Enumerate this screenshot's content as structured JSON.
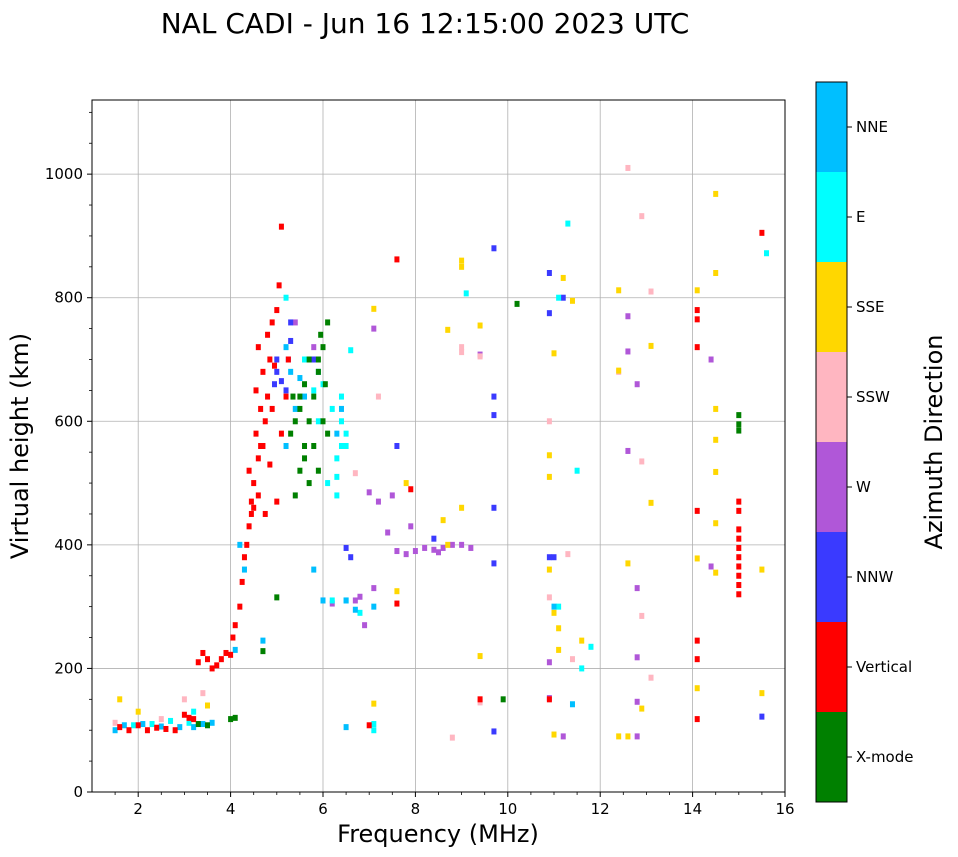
{
  "chart_data": {
    "type": "scatter",
    "title": "NAL CADI - Jun 16 12:15:00 2023 UTC",
    "xlabel": "Frequency (MHz)",
    "ylabel": "Virtual height (km)",
    "xlim": [
      1,
      16
    ],
    "ylim": [
      0,
      1120
    ],
    "xticks": [
      2,
      4,
      6,
      8,
      10,
      12,
      14,
      16
    ],
    "xtick_labels": [
      "2",
      "4",
      "6",
      "8",
      "10",
      "12",
      "14",
      "16"
    ],
    "yticks": [
      0,
      200,
      400,
      600,
      800,
      1000
    ],
    "ytick_labels": [
      "0",
      "200",
      "400",
      "600",
      "800",
      "1000"
    ],
    "grid": true,
    "colorbar": {
      "label": "Azimuth Direction",
      "categories": [
        "X-mode",
        "Vertical",
        "NNW",
        "W",
        "SSW",
        "SSE",
        "E",
        "NNE"
      ],
      "colors": {
        "X-mode": "#008000",
        "Vertical": "#ff0000",
        "NNW": "#3a3aff",
        "W": "#b057d8",
        "SSW": "#ffb6c1",
        "SSE": "#ffd700",
        "E": "#00ffff",
        "NNE": "#00bfff"
      }
    },
    "series": [
      {
        "name": "Vertical",
        "points": [
          [
            1.6,
            105
          ],
          [
            1.8,
            100
          ],
          [
            2.0,
            108
          ],
          [
            2.2,
            100
          ],
          [
            2.4,
            104
          ],
          [
            2.6,
            102
          ],
          [
            2.8,
            100
          ],
          [
            3.0,
            125
          ],
          [
            3.1,
            120
          ],
          [
            3.2,
            118
          ],
          [
            3.3,
            210
          ],
          [
            3.4,
            225
          ],
          [
            3.5,
            215
          ],
          [
            3.6,
            200
          ],
          [
            3.7,
            205
          ],
          [
            3.8,
            215
          ],
          [
            3.9,
            225
          ],
          [
            4.0,
            222
          ],
          [
            4.05,
            250
          ],
          [
            4.1,
            270
          ],
          [
            4.2,
            300
          ],
          [
            4.25,
            340
          ],
          [
            4.3,
            380
          ],
          [
            4.35,
            400
          ],
          [
            4.45,
            450
          ],
          [
            4.5,
            500
          ],
          [
            4.6,
            540
          ],
          [
            4.7,
            560
          ],
          [
            4.75,
            600
          ],
          [
            4.8,
            640
          ],
          [
            4.85,
            700
          ],
          [
            4.9,
            760
          ],
          [
            5.0,
            780
          ],
          [
            5.05,
            820
          ],
          [
            4.4,
            520
          ],
          [
            4.55,
            580
          ],
          [
            4.65,
            620
          ],
          [
            4.7,
            680
          ],
          [
            4.8,
            740
          ],
          [
            4.95,
            690
          ],
          [
            4.5,
            460
          ],
          [
            4.6,
            480
          ],
          [
            4.75,
            450
          ],
          [
            4.85,
            530
          ],
          [
            5.0,
            470
          ],
          [
            5.1,
            580
          ],
          [
            5.2,
            640
          ],
          [
            5.25,
            700
          ],
          [
            4.4,
            430
          ],
          [
            4.55,
            650
          ],
          [
            4.6,
            720
          ],
          [
            4.45,
            470
          ],
          [
            4.65,
            560
          ],
          [
            4.9,
            620
          ],
          [
            7.6,
            305
          ],
          [
            7.9,
            490
          ],
          [
            10.9,
            150
          ],
          [
            9.4,
            150
          ],
          [
            14.1,
            720
          ],
          [
            14.1,
            780
          ],
          [
            14.1,
            765
          ],
          [
            14.1,
            455
          ],
          [
            14.1,
            245
          ],
          [
            14.1,
            215
          ],
          [
            14.1,
            118
          ],
          [
            15.5,
            905
          ],
          [
            15.0,
            470
          ],
          [
            15.0,
            455
          ],
          [
            15.0,
            425
          ],
          [
            15.0,
            410
          ],
          [
            15.0,
            395
          ],
          [
            15.0,
            380
          ],
          [
            15.0,
            365
          ],
          [
            15.0,
            350
          ],
          [
            15.0,
            335
          ],
          [
            15.0,
            320
          ],
          [
            5.1,
            915
          ],
          [
            7.6,
            862
          ],
          [
            7.0,
            108
          ]
        ]
      },
      {
        "name": "X-mode",
        "points": [
          [
            3.3,
            110
          ],
          [
            3.5,
            108
          ],
          [
            4.0,
            118
          ],
          [
            4.1,
            120
          ],
          [
            5.0,
            315
          ],
          [
            4.7,
            228
          ],
          [
            5.4,
            480
          ],
          [
            5.5,
            520
          ],
          [
            5.6,
            560
          ],
          [
            5.7,
            600
          ],
          [
            5.8,
            640
          ],
          [
            5.9,
            680
          ],
          [
            6.0,
            720
          ],
          [
            6.1,
            760
          ],
          [
            5.5,
            620
          ],
          [
            5.6,
            660
          ],
          [
            5.7,
            700
          ],
          [
            5.8,
            560
          ],
          [
            5.9,
            520
          ],
          [
            5.3,
            580
          ],
          [
            5.4,
            600
          ],
          [
            5.5,
            640
          ],
          [
            5.6,
            540
          ],
          [
            5.7,
            500
          ],
          [
            6.0,
            600
          ],
          [
            6.1,
            580
          ],
          [
            5.9,
            700
          ],
          [
            5.95,
            740
          ],
          [
            6.05,
            660
          ],
          [
            5.35,
            640
          ],
          [
            15.0,
            610
          ],
          [
            15.0,
            595
          ],
          [
            15.0,
            585
          ],
          [
            10.2,
            790
          ],
          [
            9.9,
            150
          ]
        ]
      },
      {
        "name": "NNW",
        "points": [
          [
            5.0,
            680
          ],
          [
            5.1,
            665
          ],
          [
            5.2,
            650
          ],
          [
            5.25,
            700
          ],
          [
            4.95,
            660
          ],
          [
            5.3,
            760
          ],
          [
            5.8,
            700
          ],
          [
            6.5,
            395
          ],
          [
            6.6,
            380
          ],
          [
            7.6,
            560
          ],
          [
            8.4,
            410
          ],
          [
            10.9,
            840
          ],
          [
            11.0,
            380
          ],
          [
            10.9,
            775
          ],
          [
            9.7,
            880
          ],
          [
            9.7,
            640
          ],
          [
            9.7,
            610
          ],
          [
            9.7,
            460
          ],
          [
            9.7,
            370
          ],
          [
            9.7,
            98
          ],
          [
            10.9,
            380
          ],
          [
            11.2,
            800
          ],
          [
            15.5,
            122
          ],
          [
            5.3,
            730
          ],
          [
            5.0,
            700
          ]
        ]
      },
      {
        "name": "W",
        "points": [
          [
            6.8,
            316
          ],
          [
            6.7,
            310
          ],
          [
            7.1,
            330
          ],
          [
            7.4,
            420
          ],
          [
            7.6,
            390
          ],
          [
            7.8,
            385
          ],
          [
            8.0,
            390
          ],
          [
            8.2,
            395
          ],
          [
            8.4,
            392
          ],
          [
            8.6,
            395
          ],
          [
            8.8,
            400
          ],
          [
            9.0,
            400
          ],
          [
            9.2,
            395
          ],
          [
            8.5,
            388
          ],
          [
            7.9,
            430
          ],
          [
            7.5,
            480
          ],
          [
            7.2,
            470
          ],
          [
            5.4,
            760
          ],
          [
            5.8,
            720
          ],
          [
            6.0,
            310
          ],
          [
            6.2,
            305
          ],
          [
            9.4,
            708
          ],
          [
            12.6,
            770
          ],
          [
            12.6,
            713
          ],
          [
            12.6,
            552
          ],
          [
            12.8,
            660
          ],
          [
            12.8,
            330
          ],
          [
            12.8,
            218
          ],
          [
            12.8,
            146
          ],
          [
            12.8,
            90
          ],
          [
            14.4,
            700
          ],
          [
            14.4,
            365
          ],
          [
            10.9,
            152
          ],
          [
            11.2,
            90
          ],
          [
            10.9,
            210
          ],
          [
            7.0,
            485
          ],
          [
            7.1,
            750
          ],
          [
            6.9,
            270
          ]
        ]
      },
      {
        "name": "SSW",
        "points": [
          [
            1.5,
            112
          ],
          [
            2.5,
            118
          ],
          [
            3.0,
            150
          ],
          [
            3.4,
            160
          ],
          [
            8.8,
            88
          ],
          [
            9.0,
            712
          ],
          [
            9.0,
            720
          ],
          [
            10.9,
            315
          ],
          [
            11.3,
            385
          ],
          [
            11.4,
            215
          ],
          [
            12.6,
            1010
          ],
          [
            12.9,
            932
          ],
          [
            13.1,
            810
          ],
          [
            12.9,
            535
          ],
          [
            12.9,
            285
          ],
          [
            13.1,
            185
          ],
          [
            12.4,
            680
          ],
          [
            9.4,
            705
          ],
          [
            6.7,
            516
          ],
          [
            7.2,
            640
          ],
          [
            10.9,
            600
          ],
          [
            9.4,
            145
          ]
        ]
      },
      {
        "name": "SSE",
        "points": [
          [
            1.6,
            150
          ],
          [
            2.0,
            130
          ],
          [
            3.5,
            140
          ],
          [
            8.6,
            440
          ],
          [
            8.7,
            748
          ],
          [
            9.0,
            860
          ],
          [
            9.0,
            850
          ],
          [
            9.0,
            460
          ],
          [
            9.4,
            755
          ],
          [
            9.4,
            220
          ],
          [
            8.7,
            400
          ],
          [
            10.9,
            545
          ],
          [
            10.9,
            510
          ],
          [
            11.0,
            710
          ],
          [
            10.9,
            360
          ],
          [
            11.0,
            290
          ],
          [
            11.1,
            265
          ],
          [
            11.2,
            832
          ],
          [
            11.4,
            795
          ],
          [
            11.1,
            230
          ],
          [
            12.4,
            812
          ],
          [
            12.4,
            682
          ],
          [
            12.6,
            370
          ],
          [
            12.9,
            135
          ],
          [
            13.1,
            722
          ],
          [
            13.1,
            468
          ],
          [
            12.4,
            90
          ],
          [
            12.6,
            90
          ],
          [
            14.5,
            968
          ],
          [
            14.5,
            840
          ],
          [
            14.1,
            812
          ],
          [
            14.5,
            620
          ],
          [
            14.5,
            570
          ],
          [
            14.5,
            518
          ],
          [
            14.5,
            435
          ],
          [
            14.5,
            355
          ],
          [
            14.1,
            378
          ],
          [
            14.1,
            168
          ],
          [
            15.5,
            360
          ],
          [
            15.5,
            160
          ],
          [
            7.1,
            782
          ],
          [
            7.6,
            325
          ],
          [
            7.1,
            143
          ],
          [
            11.0,
            93
          ],
          [
            11.6,
            245
          ],
          [
            7.8,
            500
          ]
        ]
      },
      {
        "name": "E",
        "points": [
          [
            1.9,
            108
          ],
          [
            2.3,
            110
          ],
          [
            2.7,
            115
          ],
          [
            3.1,
            112
          ],
          [
            3.2,
            130
          ],
          [
            6.4,
            600
          ],
          [
            6.5,
            580
          ],
          [
            6.4,
            560
          ],
          [
            6.3,
            540
          ],
          [
            6.5,
            560
          ],
          [
            6.3,
            510
          ],
          [
            6.4,
            640
          ],
          [
            6.2,
            620
          ],
          [
            6.1,
            500
          ],
          [
            6.3,
            480
          ],
          [
            5.8,
            650
          ],
          [
            5.9,
            600
          ],
          [
            6.2,
            310
          ],
          [
            6.5,
            310
          ],
          [
            6.8,
            290
          ],
          [
            7.1,
            110
          ],
          [
            7.1,
            100
          ],
          [
            9.1,
            807
          ],
          [
            11.3,
            920
          ],
          [
            11.1,
            300
          ],
          [
            11.5,
            520
          ],
          [
            11.6,
            200
          ],
          [
            11.8,
            235
          ],
          [
            15.6,
            872
          ],
          [
            6.6,
            715
          ],
          [
            6.0,
            660
          ],
          [
            5.6,
            700
          ],
          [
            11.1,
            800
          ],
          [
            5.2,
            800
          ]
        ]
      },
      {
        "name": "NNE",
        "points": [
          [
            1.5,
            100
          ],
          [
            1.7,
            108
          ],
          [
            2.1,
            110
          ],
          [
            2.5,
            106
          ],
          [
            2.9,
            105
          ],
          [
            3.2,
            105
          ],
          [
            3.4,
            110
          ],
          [
            3.6,
            112
          ],
          [
            4.3,
            360
          ],
          [
            4.2,
            400
          ],
          [
            4.1,
            230
          ],
          [
            4.7,
            245
          ],
          [
            5.5,
            670
          ],
          [
            5.3,
            680
          ],
          [
            5.6,
            640
          ],
          [
            5.4,
            620
          ],
          [
            5.2,
            560
          ],
          [
            6.4,
            620
          ],
          [
            6.3,
            580
          ],
          [
            5.8,
            360
          ],
          [
            6.7,
            295
          ],
          [
            6.5,
            310
          ],
          [
            6.0,
            310
          ],
          [
            7.1,
            300
          ],
          [
            11.0,
            300
          ],
          [
            11.4,
            142
          ],
          [
            6.5,
            105
          ],
          [
            5.9,
            680
          ],
          [
            5.2,
            720
          ]
        ]
      }
    ]
  }
}
